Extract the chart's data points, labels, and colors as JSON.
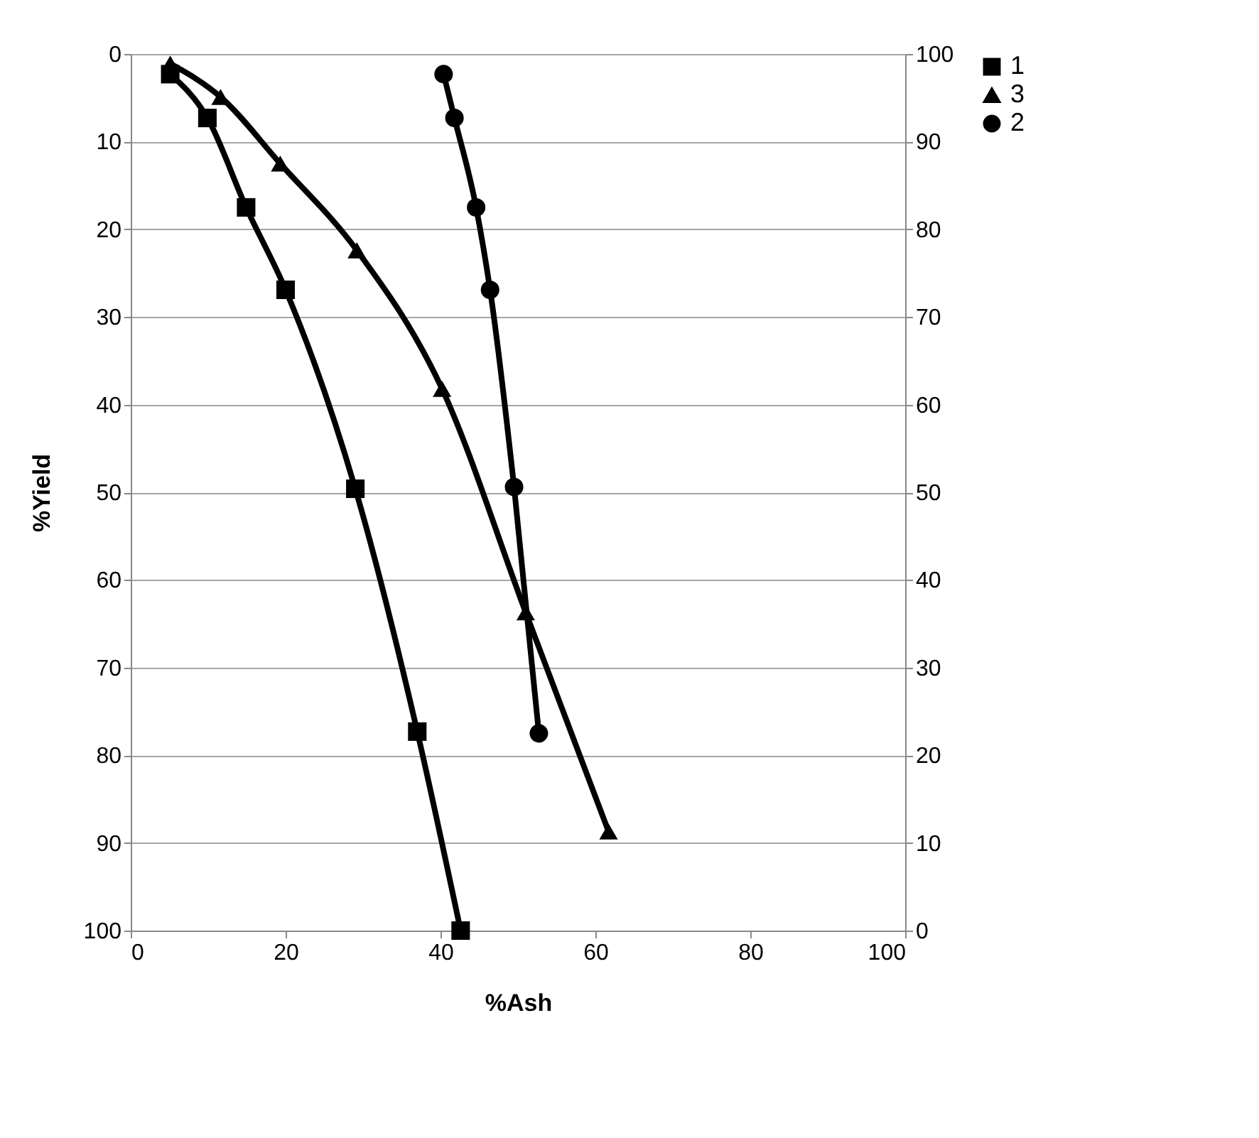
{
  "chart_data": {
    "type": "line",
    "xlabel": "%Ash",
    "ylabel": "%Yield",
    "xlim": [
      0,
      100
    ],
    "xticks": [
      0,
      20,
      40,
      60,
      80,
      100
    ],
    "ylim": [
      100,
      0
    ],
    "yticks": [
      0,
      10,
      20,
      30,
      40,
      50,
      60,
      70,
      80,
      90,
      100
    ],
    "y2lim": [
      0,
      100
    ],
    "y2ticks": [
      0,
      10,
      20,
      30,
      40,
      50,
      60,
      70,
      80,
      90,
      100
    ],
    "grid": "y",
    "legend": "right",
    "line_style": "solid",
    "series": [
      {
        "name": "1",
        "color": "#000000",
        "marker": "square",
        "x": [
          5.1,
          9.9,
          14.9,
          20,
          29,
          37,
          42.6
        ],
        "values": [
          2.3,
          7.3,
          17.5,
          26.9,
          49.6,
          77.3,
          100
        ]
      },
      {
        "name": "3",
        "color": "#000000",
        "marker": "triangle",
        "x": [
          5.1,
          11.6,
          19.3,
          29.2,
          40.2,
          51,
          61.7
        ],
        "values": [
          1.1,
          4.9,
          12.5,
          22.4,
          38.2,
          63.7,
          88.7
        ]
      },
      {
        "name": "2",
        "color": "#000000",
        "marker": "circle",
        "x": [
          40.4,
          41.8,
          44.6,
          46.4,
          49.5,
          52.7
        ],
        "values": [
          2.3,
          7.3,
          17.5,
          26.9,
          49.4,
          77.5
        ]
      }
    ]
  }
}
